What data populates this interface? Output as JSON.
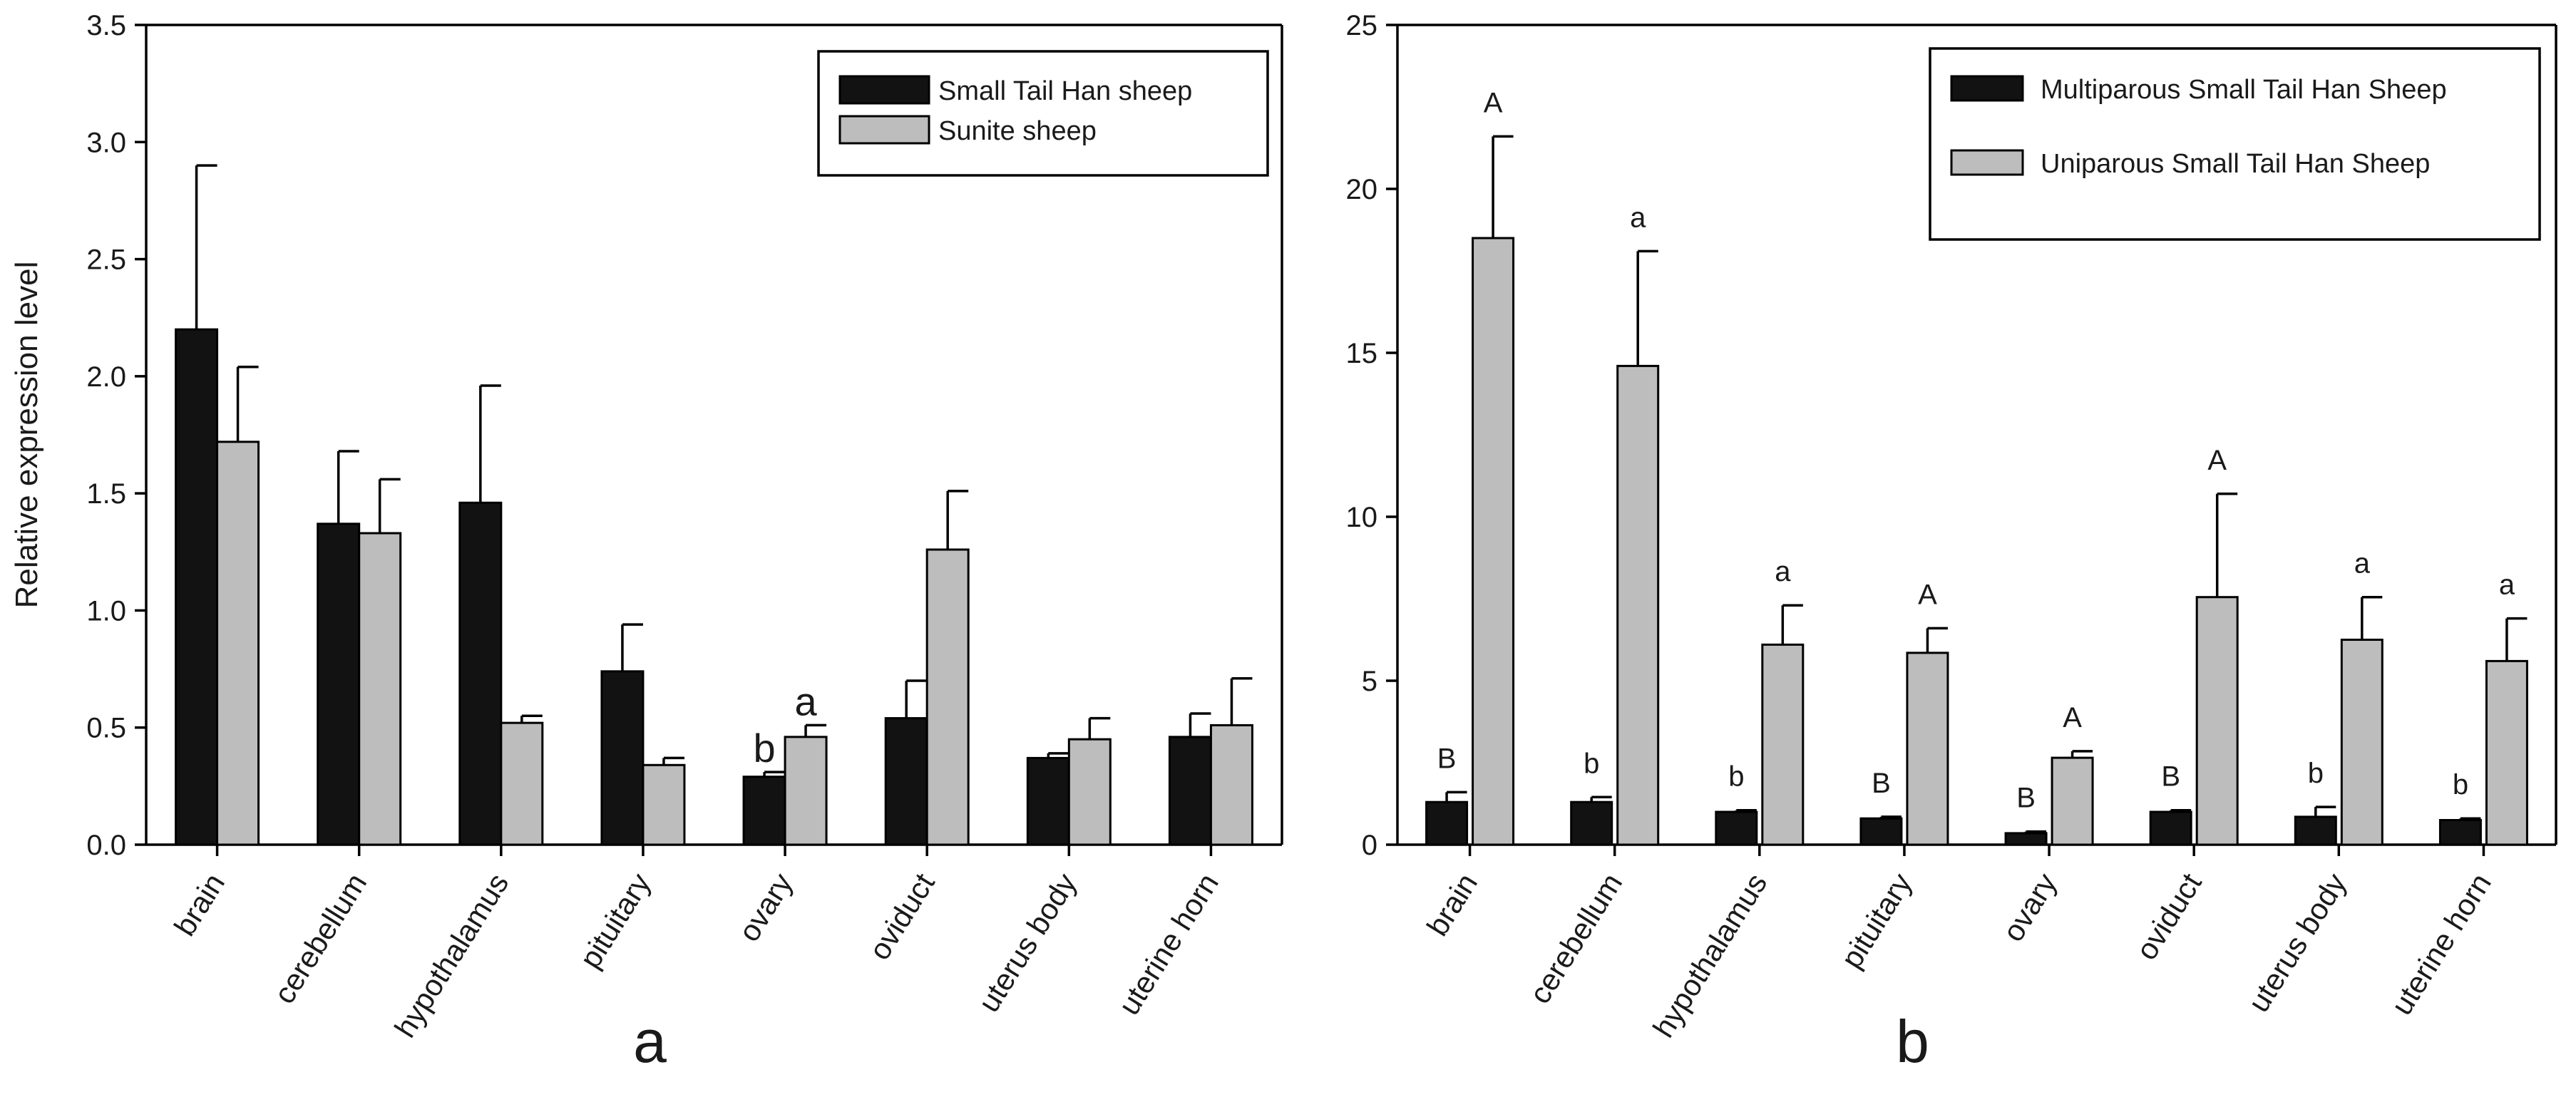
{
  "chart_data": [
    {
      "id": "a",
      "type": "bar",
      "panel_label": "a",
      "ylabel": "Relative expression level",
      "xlabel": "",
      "ylim": [
        0,
        3.5
      ],
      "yticks": [
        "0.0",
        "0.5",
        "1.0",
        "1.5",
        "2.0",
        "2.5",
        "3.0",
        "3.5"
      ],
      "categories": [
        "brain",
        "cerebellum",
        "hypothalamus",
        "pituitary",
        "ovary",
        "oviduct",
        "uterus body",
        "uterine horn"
      ],
      "legend_position": "top-right",
      "series": [
        {
          "name": "Small Tail Han sheep",
          "color": "#121212",
          "values": [
            2.2,
            1.37,
            1.46,
            0.74,
            0.29,
            0.54,
            0.37,
            0.46
          ],
          "errors": [
            0.7,
            0.31,
            0.5,
            0.2,
            0.02,
            0.16,
            0.02,
            0.1
          ],
          "sig_labels": [
            "",
            "",
            "",
            "",
            "b",
            "",
            "",
            ""
          ]
        },
        {
          "name": "Sunite sheep",
          "color": "#bdbdbd",
          "values": [
            1.72,
            1.33,
            0.52,
            0.34,
            0.46,
            1.26,
            0.45,
            0.51
          ],
          "errors": [
            0.32,
            0.23,
            0.03,
            0.03,
            0.05,
            0.25,
            0.09,
            0.2
          ],
          "sig_labels": [
            "",
            "",
            "",
            "",
            "a",
            "",
            "",
            ""
          ]
        }
      ]
    },
    {
      "id": "b",
      "type": "bar",
      "panel_label": "b",
      "ylabel": "",
      "xlabel": "",
      "ylim": [
        0,
        25
      ],
      "yticks": [
        "0",
        "5",
        "10",
        "15",
        "20",
        "25"
      ],
      "categories": [
        "brain",
        "cerebellum",
        "hypothalamus",
        "pituitary",
        "ovary",
        "oviduct",
        "uterus body",
        "uterine horn"
      ],
      "legend_position": "top-right",
      "series": [
        {
          "name": "Multiparous Small Tail Han Sheep",
          "color": "#121212",
          "values": [
            1.3,
            1.3,
            1.0,
            0.8,
            0.35,
            1.0,
            0.85,
            0.75
          ],
          "errors": [
            0.3,
            0.15,
            0.05,
            0.05,
            0.05,
            0.05,
            0.3,
            0.05
          ],
          "sig_labels": [
            "B",
            "b",
            "b",
            "B",
            "B",
            "B",
            "b",
            "b"
          ]
        },
        {
          "name": "Uniparous Small Tail Han Sheep",
          "color": "#bdbdbd",
          "values": [
            18.5,
            14.6,
            6.1,
            5.85,
            2.65,
            7.55,
            6.25,
            5.6
          ],
          "errors": [
            3.1,
            3.5,
            1.2,
            0.75,
            0.2,
            3.15,
            1.3,
            1.3
          ],
          "sig_labels": [
            "A",
            "a",
            "a",
            "A",
            "A",
            "A",
            "a",
            "a"
          ]
        }
      ]
    }
  ]
}
